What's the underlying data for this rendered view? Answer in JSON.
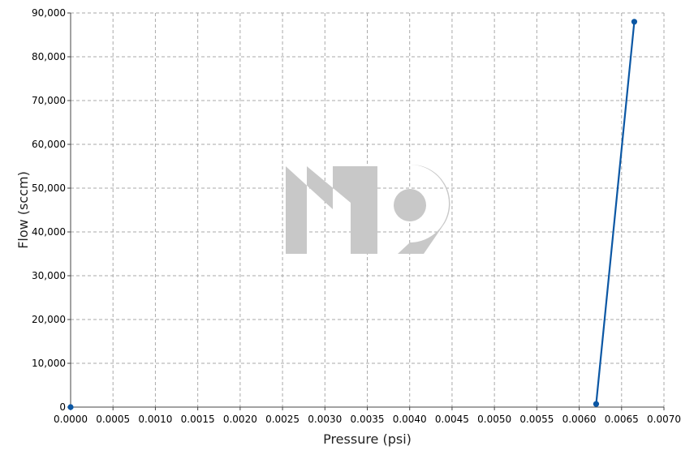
{
  "chart_data": {
    "type": "line",
    "title": "",
    "xlabel": "Pressure (psi)",
    "ylabel": "Flow (sccm)",
    "xlim": [
      0,
      0.007
    ],
    "ylim": [
      0,
      90000
    ],
    "xticks": [
      "0.0000",
      "0.0005",
      "0.0010",
      "0.0015",
      "0.0020",
      "0.0025",
      "0.0030",
      "0.0035",
      "0.0040",
      "0.0045",
      "0.0050",
      "0.0055",
      "0.0060",
      "0.0065",
      "0.0070"
    ],
    "yticks": [
      "0",
      "10,000",
      "20,000",
      "30,000",
      "40,000",
      "50,000",
      "60,000",
      "70,000",
      "80,000",
      "90,000"
    ],
    "grid": true,
    "series": [
      {
        "color": "#0b57a4",
        "x": [
          0.0,
          0.0062,
          0.00665
        ],
        "y": [
          0,
          700,
          88000
        ]
      }
    ]
  },
  "watermark": {
    "text": "M19",
    "color": "#c8c8c8"
  }
}
